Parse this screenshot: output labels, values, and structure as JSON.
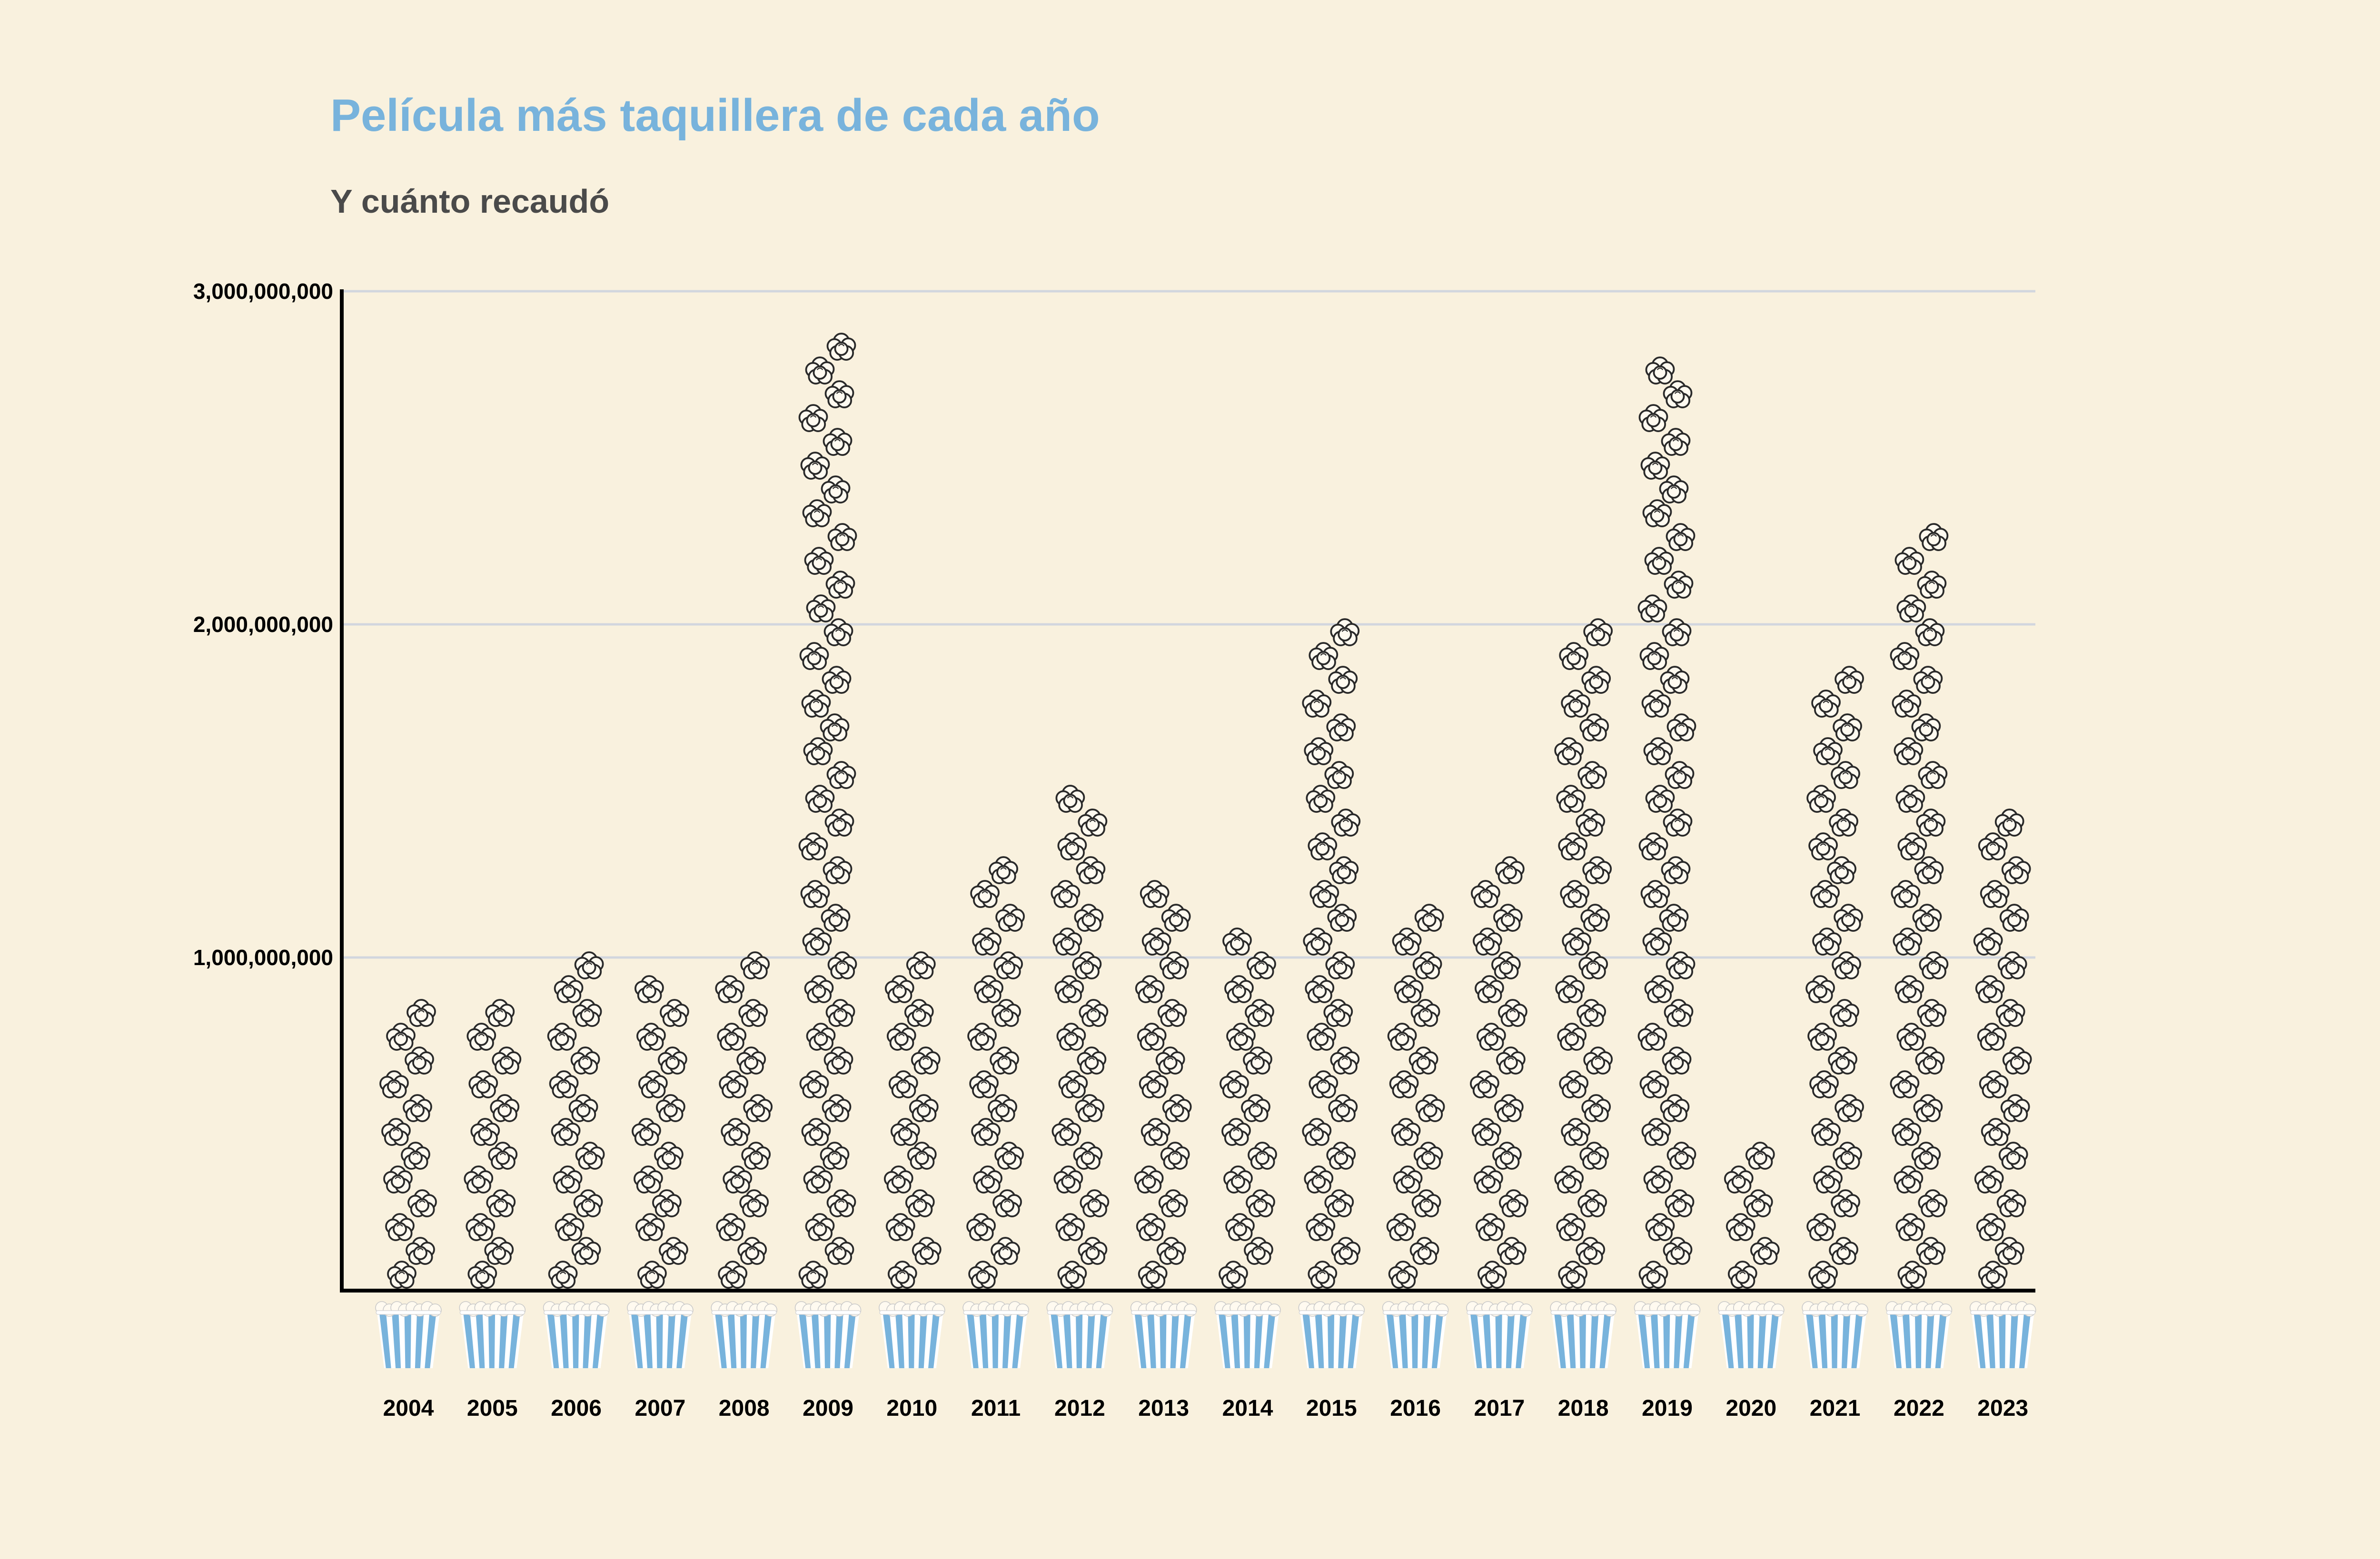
{
  "colors": {
    "background": "#f9f1de",
    "title": "#78b3dc",
    "subtitle": "#4a4a4a",
    "axis": "#000000",
    "grid": "#d2d6de",
    "bucket_stripe": "#78b3dc",
    "popcorn_fill": "#fffaf0",
    "popcorn_stroke": "#2a2a2a"
  },
  "chart_data": {
    "type": "bar",
    "title": "Película más taquillera de cada año",
    "subtitle": "Y cuánto recaudó",
    "xlabel": "",
    "ylabel": "",
    "ylim": [
      0,
      3000000000
    ],
    "yticks": [
      1000000000,
      2000000000,
      3000000000
    ],
    "ytick_labels": [
      "1,000,000,000",
      "2,000,000,000",
      "3,000,000,000"
    ],
    "grid": true,
    "legend": "none",
    "categories": [
      "2004",
      "2005",
      "2006",
      "2007",
      "2008",
      "2009",
      "2010",
      "2011",
      "2012",
      "2013",
      "2014",
      "2015",
      "2016",
      "2017",
      "2018",
      "2019",
      "2020",
      "2021",
      "2022",
      "2023"
    ],
    "values": [
      925000000,
      895000000,
      1065000000,
      960000000,
      1005000000,
      2923000000,
      1067000000,
      1342000000,
      1519000000,
      1280000000,
      1104000000,
      2068000000,
      1153000000,
      1333000000,
      2048000000,
      2798000000,
      453000000,
      1922000000,
      2320000000,
      1446000000
    ],
    "mark_icons": {
      "bar": "popcorn-stack",
      "category_marker": "popcorn-bucket-icon"
    }
  }
}
